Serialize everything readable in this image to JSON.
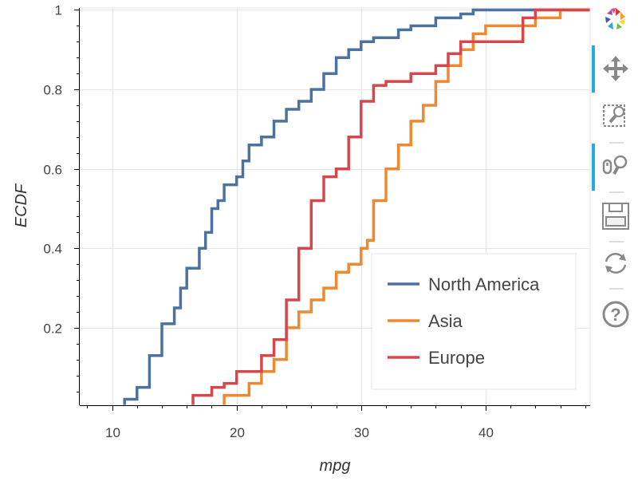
{
  "chart_data": {
    "type": "line",
    "step": true,
    "xlabel": "mpg",
    "ylabel": "ECDF",
    "xlim": [
      7.4,
      48.4
    ],
    "ylim": [
      0.005,
      1.005
    ],
    "x_ticks": [
      10,
      20,
      30,
      40
    ],
    "x_tick_labels": [
      "10",
      "20",
      "30",
      "40"
    ],
    "y_ticks": [
      0.2,
      0.4,
      0.6,
      0.8,
      1
    ],
    "y_tick_labels": [
      "0.2",
      "0.4",
      "0.6",
      "0.8",
      "1"
    ],
    "grid": true,
    "legend_position": "bottom-right",
    "series": [
      {
        "name": "North America",
        "color": "#4c72a0",
        "points": [
          [
            11,
            0.02
          ],
          [
            12,
            0.05
          ],
          [
            13,
            0.13
          ],
          [
            14,
            0.21
          ],
          [
            15,
            0.25
          ],
          [
            15.5,
            0.3
          ],
          [
            16,
            0.35
          ],
          [
            17,
            0.4
          ],
          [
            17.5,
            0.44
          ],
          [
            18,
            0.5
          ],
          [
            18.5,
            0.52
          ],
          [
            19,
            0.56
          ],
          [
            20,
            0.58
          ],
          [
            20.5,
            0.62
          ],
          [
            21,
            0.66
          ],
          [
            22,
            0.68
          ],
          [
            23,
            0.72
          ],
          [
            24,
            0.75
          ],
          [
            25,
            0.77
          ],
          [
            26,
            0.8
          ],
          [
            27,
            0.84
          ],
          [
            28,
            0.88
          ],
          [
            29,
            0.9
          ],
          [
            30,
            0.92
          ],
          [
            31,
            0.93
          ],
          [
            33,
            0.95
          ],
          [
            34,
            0.96
          ],
          [
            36,
            0.98
          ],
          [
            38,
            0.99
          ],
          [
            39,
            1.0
          ]
        ]
      },
      {
        "name": "Asia",
        "color": "#f0882f",
        "points": [
          [
            19,
            0.03
          ],
          [
            21,
            0.06
          ],
          [
            22,
            0.09
          ],
          [
            23,
            0.12
          ],
          [
            24,
            0.2
          ],
          [
            25,
            0.24
          ],
          [
            26,
            0.27
          ],
          [
            27,
            0.3
          ],
          [
            28,
            0.34
          ],
          [
            29,
            0.36
          ],
          [
            30,
            0.4
          ],
          [
            30.5,
            0.42
          ],
          [
            31,
            0.52
          ],
          [
            32,
            0.6
          ],
          [
            33,
            0.66
          ],
          [
            34,
            0.72
          ],
          [
            35,
            0.76
          ],
          [
            36,
            0.82
          ],
          [
            37,
            0.86
          ],
          [
            38,
            0.9
          ],
          [
            39,
            0.94
          ],
          [
            40,
            0.96
          ],
          [
            44,
            0.98
          ],
          [
            46,
            1.0
          ]
        ]
      },
      {
        "name": "Europe",
        "color": "#d5474d",
        "points": [
          [
            16.5,
            0.03
          ],
          [
            18,
            0.05
          ],
          [
            19,
            0.06
          ],
          [
            20,
            0.09
          ],
          [
            22,
            0.13
          ],
          [
            23,
            0.17
          ],
          [
            24,
            0.27
          ],
          [
            25,
            0.4
          ],
          [
            26,
            0.52
          ],
          [
            27,
            0.58
          ],
          [
            28,
            0.6
          ],
          [
            29,
            0.68
          ],
          [
            30,
            0.77
          ],
          [
            31,
            0.81
          ],
          [
            32,
            0.82
          ],
          [
            34,
            0.84
          ],
          [
            36,
            0.86
          ],
          [
            37,
            0.89
          ],
          [
            38,
            0.92
          ],
          [
            43,
            0.98
          ],
          [
            44,
            1.0
          ]
        ]
      }
    ]
  },
  "toolbar": {
    "tools": [
      "bokeh-logo-icon",
      "pan-icon",
      "box-zoom-icon",
      "wheel-zoom-icon",
      "save-icon",
      "reset-icon",
      "help-icon"
    ],
    "active_tools": [
      "pan-icon",
      "wheel-zoom-icon"
    ],
    "accent_color": "#26aae1"
  }
}
